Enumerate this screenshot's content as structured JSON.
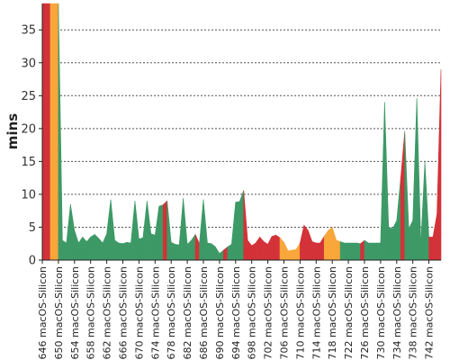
{
  "chart_data": {
    "type": "area",
    "title": "",
    "xlabel": "",
    "ylabel": "mins",
    "ylim": [
      0,
      39
    ],
    "yticks": [
      0,
      5,
      10,
      15,
      20,
      25,
      30,
      35
    ],
    "grid": "horizontal dashed",
    "x_tick_labels": [
      "#646 macOS-Silicon",
      "#650 macOS-Silicon",
      "#654 macOS-Silicon",
      "#658 macOS-Silicon",
      "#662 macOS-Silicon",
      "#666 macOS-Silicon",
      "#670 macOS-Silicon",
      "#674 macOS-Silicon",
      "#678 macOS-Silicon",
      "#682 macOS-Silicon",
      "#686 macOS-Silicon",
      "#690 macOS-Silicon",
      "#694 macOS-Silicon",
      "#698 macOS-Silicon",
      "#702 macOS-Silicon",
      "#706 macOS-Silicon",
      "#710 macOS-Silicon",
      "#714 macOS-Silicon",
      "#718 macOS-Silicon",
      "#722 macOS-Silicon",
      "#726 macOS-Silicon",
      "#730 macOS-Silicon",
      "#734 macOS-Silicon",
      "#738 macOS-Silicon",
      "#742 macOS-Silicon"
    ],
    "x_start": 646,
    "x_end": 745,
    "colors": {
      "success": "#3d9966",
      "failure": "#d23238",
      "unstable": "#f9a63a"
    },
    "build_status": [
      "F",
      "F",
      "F",
      "U",
      "U",
      "S",
      "S",
      "S",
      "S",
      "S",
      "S",
      "S",
      "S",
      "S",
      "S",
      "S",
      "S",
      "S",
      "S",
      "S",
      "S",
      "S",
      "S",
      "S",
      "S",
      "S",
      "S",
      "S",
      "S",
      "S",
      "S",
      "F",
      "S",
      "S",
      "S",
      "S",
      "S",
      "S",
      "S",
      "F",
      "S",
      "S",
      "S",
      "S",
      "S",
      "S",
      "F",
      "S",
      "S",
      "S",
      "S",
      "F",
      "F",
      "F",
      "F",
      "F",
      "F",
      "F",
      "F",
      "F",
      "U",
      "U",
      "U",
      "U",
      "U",
      "F",
      "F",
      "F",
      "F",
      "F",
      "F",
      "U",
      "U",
      "U",
      "U",
      "S",
      "S",
      "S",
      "S",
      "S",
      "F",
      "S",
      "S",
      "S",
      "S",
      "S",
      "S",
      "S",
      "S",
      "S",
      "F",
      "S",
      "S",
      "S",
      "S",
      "S",
      "S",
      "F",
      "F",
      "F"
    ],
    "values": [
      39,
      39,
      39,
      39,
      39,
      3.0,
      2.6,
      8.5,
      4.5,
      2.6,
      3.5,
      2.8,
      3.5,
      3.9,
      3.3,
      2.6,
      4.0,
      9.2,
      3.0,
      2.6,
      2.5,
      2.7,
      2.6,
      9.0,
      3.2,
      3.4,
      9.0,
      4.0,
      3.8,
      8.2,
      8.4,
      9.0,
      2.7,
      2.4,
      2.3,
      9.4,
      2.4,
      3.0,
      3.9,
      2.5,
      9.2,
      2.6,
      2.5,
      2.0,
      1.0,
      1.5,
      2.0,
      2.4,
      8.8,
      8.9,
      10.6,
      3.0,
      2.2,
      2.6,
      3.5,
      2.8,
      2.4,
      3.6,
      3.8,
      3.4,
      2.7,
      1.4,
      1.5,
      1.6,
      2.6,
      5.3,
      4.5,
      2.8,
      2.6,
      2.6,
      3.6,
      4.5,
      5.0,
      3.0,
      2.8,
      2.6,
      2.6,
      2.6,
      2.6,
      2.5,
      3.0,
      2.6,
      2.6,
      2.6,
      2.6,
      24.0,
      5.0,
      4.8,
      6.0,
      12.5,
      19.6,
      4.8,
      6.0,
      24.6,
      2.6,
      15.0,
      3.5,
      3.5,
      7.0,
      29.0
    ]
  }
}
